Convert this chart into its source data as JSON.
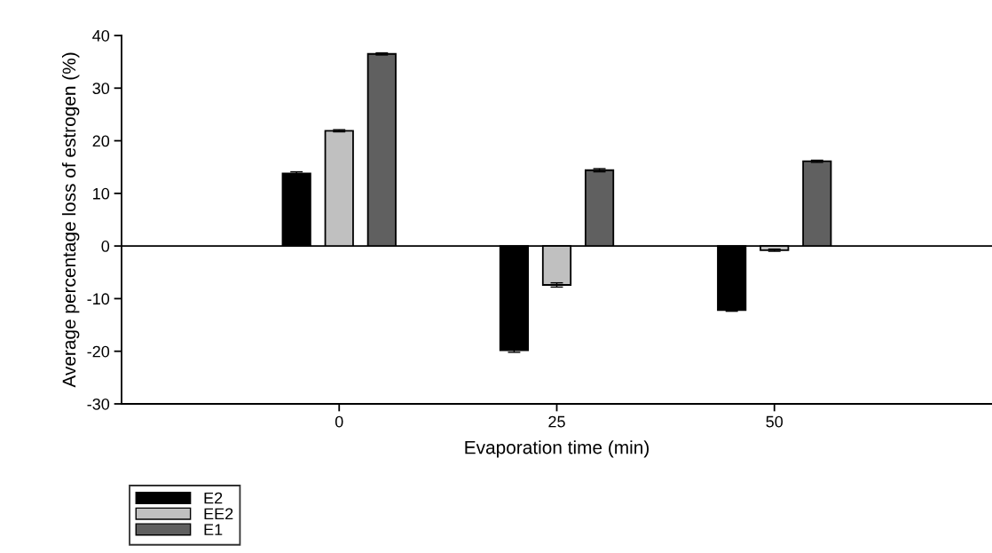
{
  "chart_data": {
    "type": "bar",
    "xlabel": "Evaporation time (min)",
    "ylabel": "Average percentage loss of estrogen (%)",
    "x": [
      0,
      25,
      50
    ],
    "xlim": [
      -25,
      75
    ],
    "xticks": [
      0,
      25,
      50
    ],
    "ylim": [
      -30,
      40
    ],
    "yticks": [
      -30,
      -20,
      -10,
      0,
      10,
      20,
      30,
      40
    ],
    "series": [
      {
        "name": "E2",
        "color": "#000000",
        "values": [
          13.8,
          -19.8,
          -12.2
        ],
        "errors": [
          0.3,
          0.4,
          0.2
        ]
      },
      {
        "name": "EE2",
        "color": "#c0c0c0",
        "values": [
          21.9,
          -7.4,
          -0.8
        ],
        "errors": [
          0.2,
          0.4,
          0.2
        ]
      },
      {
        "name": "E1",
        "color": "#606060",
        "values": [
          36.5,
          14.4,
          16.1
        ],
        "errors": [
          0.2,
          0.3,
          0.2
        ]
      }
    ],
    "ref_lines": [
      {
        "axis": "y",
        "value": 0,
        "color": "#000000"
      }
    ],
    "grid": false,
    "legend": "bottom left"
  }
}
